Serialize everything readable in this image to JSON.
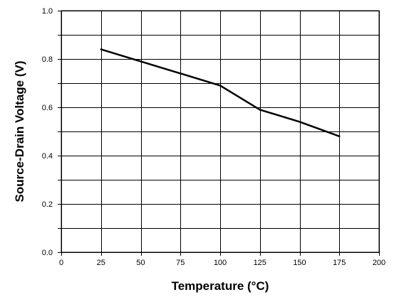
{
  "chart_data": {
    "type": "line",
    "title": "",
    "xlabel": "Temperature (°C)",
    "ylabel": "Source-Drain Voltage (V)",
    "xlim": [
      0,
      200
    ],
    "ylim": [
      0.0,
      1.0
    ],
    "x_ticks": [
      0,
      25,
      50,
      75,
      100,
      125,
      150,
      175,
      200
    ],
    "x_tick_labels": [
      "0",
      "25",
      "50",
      "75",
      "100",
      "125",
      "150",
      "175",
      "200"
    ],
    "y_ticks": [
      0.0,
      0.2,
      0.4,
      0.6,
      0.8,
      1.0
    ],
    "y_tick_labels": [
      "0.0",
      "0.2",
      "0.4",
      "0.6",
      "0.8",
      "1.0"
    ],
    "y_minor_gridlines": [
      0.1,
      0.3,
      0.5,
      0.7,
      0.9
    ],
    "grid": true,
    "legend": "none",
    "series": [
      {
        "color": "#000000",
        "x": [
          25,
          50,
          75,
          100,
          125,
          150,
          175
        ],
        "y": [
          0.84,
          0.79,
          0.74,
          0.69,
          0.59,
          0.54,
          0.48
        ]
      }
    ]
  }
}
